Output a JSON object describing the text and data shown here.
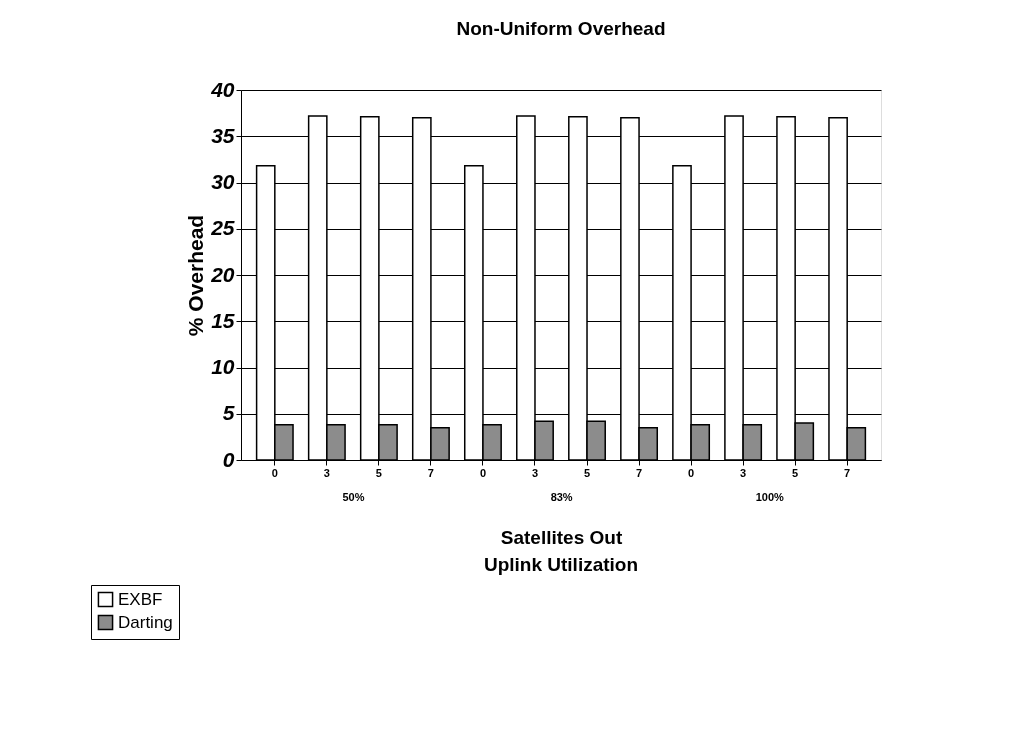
{
  "chart_data": {
    "type": "bar",
    "title": "Non-Uniform Overhead",
    "xlabel": "Satellites Out",
    "ylabel": "% Overhead",
    "categories": [
      "0",
      "3",
      "5",
      "7",
      "0",
      "3",
      "5",
      "7",
      "0",
      "3",
      "5",
      "7"
    ],
    "series": [
      {
        "name": "EXBF",
        "color": "#ffffff",
        "values": [
          31.8,
          37.2,
          37.1,
          37.0,
          31.8,
          37.2,
          37.1,
          37.0,
          31.8,
          37.2,
          37.1,
          37.0
        ]
      },
      {
        "name": "Darting",
        "color": "#8c8c8c",
        "values": [
          3.8,
          3.8,
          3.8,
          3.5,
          3.8,
          4.2,
          4.2,
          3.5,
          3.8,
          3.8,
          4.0,
          3.5
        ]
      }
    ],
    "annotations": [
      "50%",
      "83%",
      "100%",
      "Uplink Utilization"
    ],
    "ylim": [
      0,
      40
    ],
    "yticks": [
      0,
      5,
      10,
      15,
      20,
      25,
      30,
      35,
      40
    ],
    "grid": "y",
    "legend": "bottom left"
  }
}
